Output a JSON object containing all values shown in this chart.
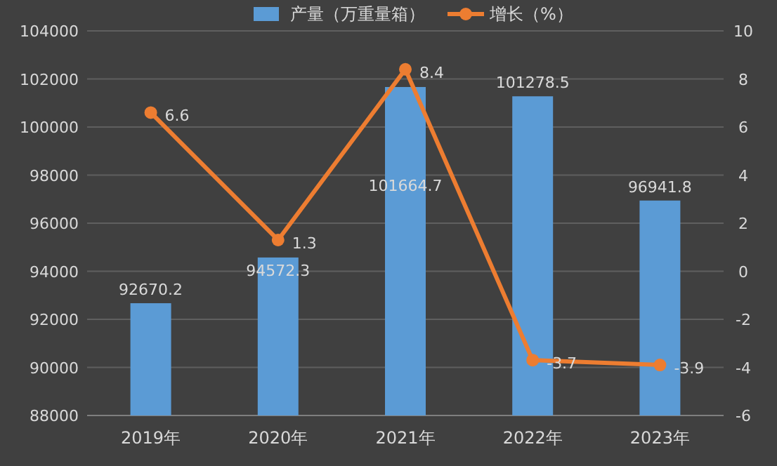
{
  "chart_data": {
    "type": "bar",
    "categories": [
      "2019年",
      "2020年",
      "2021年",
      "2022年",
      "2023年"
    ],
    "series": [
      {
        "name": "产量（万重量箱）",
        "color": "#5b9bd5",
        "values": [
          92670.2,
          94572.3,
          101664.7,
          101278.5,
          96941.8
        ]
      },
      {
        "name": "增长（%）",
        "type": "line",
        "axis": "y2",
        "color": "#ed7d31",
        "values": [
          6.6,
          1.3,
          8.4,
          -3.7,
          -3.9
        ]
      }
    ],
    "ylim": [
      88000,
      104000
    ],
    "yticks": [
      88000,
      90000,
      92000,
      94000,
      96000,
      98000,
      100000,
      102000,
      104000
    ],
    "y2lim": [
      -6,
      10
    ],
    "y2ticks": [
      -6,
      -4,
      -2,
      0,
      2,
      4,
      6,
      8,
      10
    ],
    "grid": "y",
    "legend": "top",
    "marker": "circle",
    "data_labels": true
  }
}
